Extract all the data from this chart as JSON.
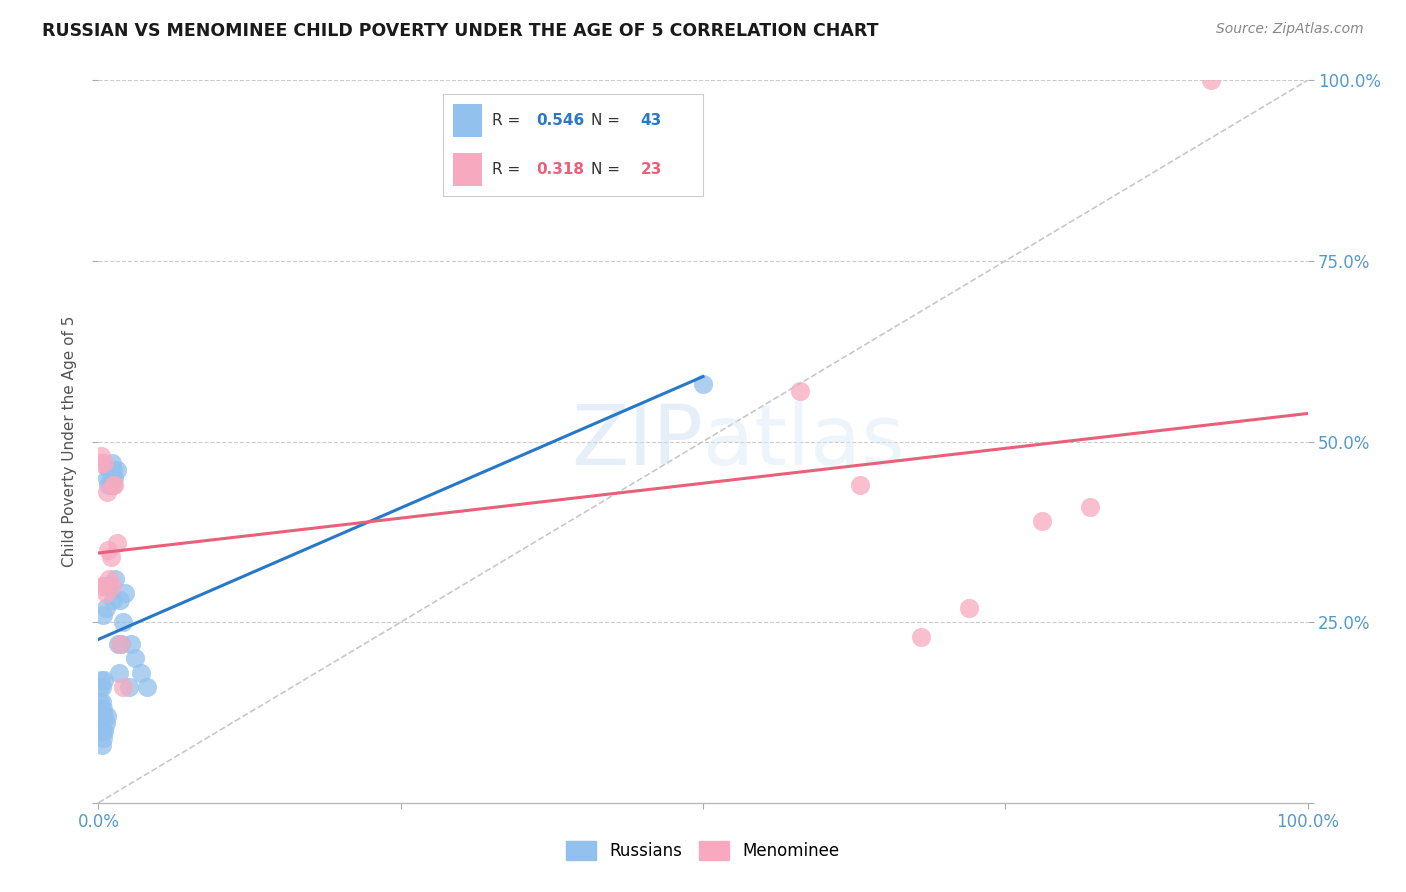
{
  "title": "RUSSIAN VS MENOMINEE CHILD POVERTY UNDER THE AGE OF 5 CORRELATION CHART",
  "source": "Source: ZipAtlas.com",
  "ylabel": "Child Poverty Under the Age of 5",
  "watermark_zip": "ZIP",
  "watermark_atlas": "atlas",
  "russian_R": 0.546,
  "russian_N": 43,
  "menominee_R": 0.318,
  "menominee_N": 23,
  "russian_color": "#92C1ED",
  "menominee_color": "#F7AABF",
  "trend_russian_color": "#2878C8",
  "trend_menominee_color": "#E8607A",
  "diagonal_color": "#C8C8C8",
  "background_color": "#FFFFFF",
  "grid_color": "#CCCCCC",
  "tick_color": "#5599CC",
  "xlim": [
    0,
    1
  ],
  "ylim": [
    0,
    1
  ],
  "russians_x": [
    0.001,
    0.001,
    0.002,
    0.002,
    0.002,
    0.003,
    0.003,
    0.003,
    0.003,
    0.004,
    0.004,
    0.004,
    0.004,
    0.005,
    0.005,
    0.005,
    0.006,
    0.006,
    0.007,
    0.007,
    0.007,
    0.008,
    0.008,
    0.009,
    0.01,
    0.011,
    0.012,
    0.012,
    0.013,
    0.014,
    0.015,
    0.016,
    0.017,
    0.018,
    0.019,
    0.02,
    0.022,
    0.025,
    0.027,
    0.03,
    0.035,
    0.04,
    0.5
  ],
  "russians_y": [
    0.14,
    0.16,
    0.1,
    0.13,
    0.17,
    0.08,
    0.12,
    0.14,
    0.16,
    0.09,
    0.1,
    0.13,
    0.26,
    0.1,
    0.12,
    0.17,
    0.11,
    0.27,
    0.12,
    0.3,
    0.45,
    0.3,
    0.44,
    0.46,
    0.44,
    0.47,
    0.28,
    0.46,
    0.45,
    0.31,
    0.46,
    0.22,
    0.18,
    0.28,
    0.22,
    0.25,
    0.29,
    0.16,
    0.22,
    0.2,
    0.18,
    0.16,
    0.58
  ],
  "menominee_x": [
    0.001,
    0.002,
    0.003,
    0.004,
    0.005,
    0.006,
    0.007,
    0.008,
    0.009,
    0.01,
    0.011,
    0.012,
    0.013,
    0.015,
    0.018,
    0.02,
    0.58,
    0.63,
    0.68,
    0.72,
    0.78,
    0.82,
    0.92
  ],
  "menominee_y": [
    0.47,
    0.48,
    0.3,
    0.3,
    0.47,
    0.29,
    0.43,
    0.35,
    0.31,
    0.34,
    0.3,
    0.44,
    0.44,
    0.36,
    0.22,
    0.16,
    0.57,
    0.44,
    0.23,
    0.27,
    0.39,
    0.41,
    1.0
  ],
  "marker_size": 180
}
